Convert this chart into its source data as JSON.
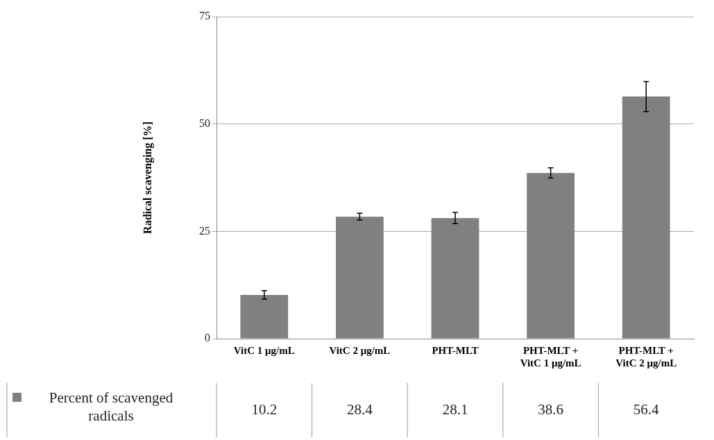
{
  "chart_data": {
    "type": "bar",
    "ylabel": "Radical scavenging [%]",
    "categories": [
      "VitC 1 μg/mL",
      "VitC 2 μg/mL",
      "PHT-MLT",
      "PHT-MLT + VitC 1 μg/mL",
      "PHT-MLT + VitC 2 μg/mL"
    ],
    "series": [
      {
        "name": "Percent of scavenged radicals",
        "color": "#808080",
        "values": [
          10.2,
          28.4,
          28.1,
          38.6,
          56.4
        ],
        "errors": [
          1.0,
          0.8,
          1.3,
          1.2,
          3.5
        ]
      }
    ],
    "ylim": [
      0,
      75
    ],
    "yticks": [
      0,
      25,
      50,
      75
    ],
    "grid": "y",
    "legend": "bottom",
    "data_labels": true
  }
}
